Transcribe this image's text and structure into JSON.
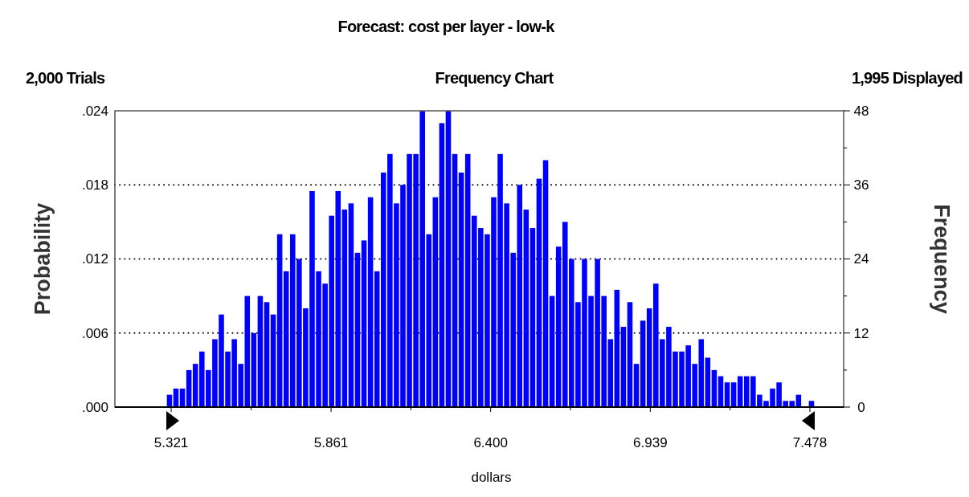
{
  "chart_data": {
    "type": "histogram",
    "title": "Forecast: cost per layer - low-k",
    "subtitle": "Frequency Chart",
    "annotations": [
      "2,000 Trials",
      "1,995 Displayed"
    ],
    "xlabel": "dollars",
    "ylabel": "Probability",
    "y2label": "Frequency",
    "bins": [
      5.305,
      5.3269,
      5.3488,
      5.3707,
      5.3926,
      5.4145,
      5.4364,
      5.4583,
      5.4802,
      5.5021,
      5.524,
      5.5459,
      5.5678,
      5.5897,
      5.6116,
      5.6335,
      5.6554,
      5.6773,
      5.6992,
      5.7211,
      5.743,
      5.7649,
      5.7868,
      5.8087,
      5.8306,
      5.8525,
      5.8744,
      5.8963,
      5.9182,
      5.9401,
      5.962,
      5.9839,
      6.0058,
      6.0277,
      6.0496,
      6.0715,
      6.0934,
      6.1153,
      6.1372,
      6.1591,
      6.181,
      6.2029,
      6.2248,
      6.2467,
      6.2686,
      6.2905,
      6.3124,
      6.3343,
      6.3562,
      6.3781,
      6.4,
      6.4219,
      6.4438,
      6.4657,
      6.4876,
      6.5095,
      6.5314,
      6.5533,
      6.5752,
      6.5971,
      6.619,
      6.6409,
      6.6628,
      6.6847,
      6.7066,
      6.7285,
      6.7504,
      6.7723,
      6.7942,
      6.8161,
      6.838,
      6.8599,
      6.8818,
      6.9037,
      6.9256,
      6.9475,
      6.9694,
      6.9913,
      7.0132,
      7.0351,
      7.057,
      7.0789,
      7.1008,
      7.1227,
      7.1446,
      7.1665,
      7.1884,
      7.2103,
      7.2322,
      7.2541,
      7.276,
      7.2979,
      7.3198,
      7.3417,
      7.3636,
      7.3855,
      7.4074,
      7.4293,
      7.4512,
      7.4731,
      7.495
    ],
    "series": [
      {
        "color": "#0000ff",
        "axis": "y2",
        "values": [
          2,
          3,
          3,
          6,
          7,
          9,
          6,
          11,
          15,
          9,
          11,
          7,
          18,
          12,
          18,
          17,
          15,
          28,
          22,
          28,
          24,
          16,
          35,
          22,
          20,
          31,
          35,
          32,
          33,
          25,
          27,
          34,
          22,
          38,
          41,
          33,
          36,
          41,
          41,
          48,
          28,
          34,
          46,
          48,
          41,
          38,
          41,
          31,
          29,
          28,
          34,
          41,
          33,
          25,
          36,
          32,
          29,
          37,
          40,
          18,
          26,
          30,
          24,
          17,
          24,
          18,
          24,
          18,
          11,
          19,
          13,
          17,
          7,
          14,
          16,
          20,
          11,
          13,
          9,
          9,
          10,
          7,
          11,
          8,
          6,
          5,
          4,
          4,
          5,
          5,
          5,
          2,
          1,
          3,
          4,
          1,
          1,
          2,
          0,
          1
        ]
      }
    ],
    "xlim": [
      5.131,
      7.592
    ],
    "xticks": [
      {
        "value": 5.321,
        "label": "5.321"
      },
      {
        "value": 5.591,
        "label": null
      },
      {
        "value": 5.861,
        "label": "5.861"
      },
      {
        "value": 6.1305,
        "label": null
      },
      {
        "value": 6.4,
        "label": "6.400"
      },
      {
        "value": 6.6695,
        "label": null
      },
      {
        "value": 6.939,
        "label": "6.939"
      },
      {
        "value": 7.2085,
        "label": null
      },
      {
        "value": 7.478,
        "label": "7.478"
      }
    ],
    "ylim": [
      0,
      0.024
    ],
    "yticks": [
      {
        "value": 0,
        "label": ".000"
      },
      {
        "value": 0.006,
        "label": ".006"
      },
      {
        "value": 0.012,
        "label": ".012"
      },
      {
        "value": 0.018,
        "label": ".018"
      },
      {
        "value": 0.024,
        "label": ".024"
      }
    ],
    "y2lim": [
      0,
      48
    ],
    "y2ticks": [
      0,
      {
        "value": 6,
        "label": null
      },
      12,
      {
        "value": 18,
        "label": null
      },
      24,
      {
        "value": 30,
        "label": null
      },
      36,
      {
        "value": 42,
        "label": null
      },
      48
    ],
    "grid": "y"
  }
}
